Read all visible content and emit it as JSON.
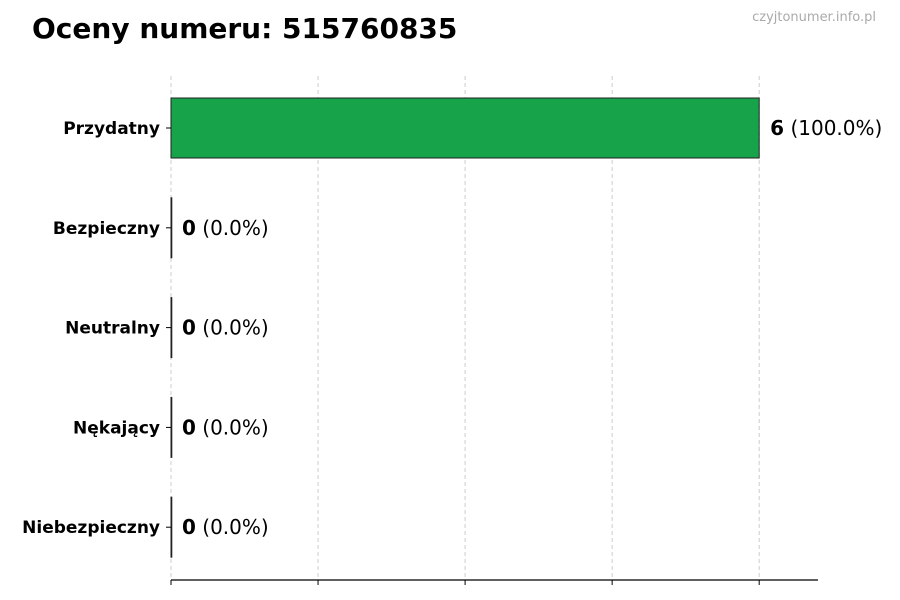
{
  "chart_data": {
    "type": "bar",
    "orientation": "horizontal",
    "title": "Oceny numeru: 515760835",
    "watermark": "czyjtonumer.info.pl",
    "categories": [
      "Przydatny",
      "Bezpieczny",
      "Neutralny",
      "Nękający",
      "Niebezpieczny"
    ],
    "values": [
      6,
      0,
      0,
      0,
      0
    ],
    "labels": [
      {
        "count": "6",
        "pct": "(100.0%)"
      },
      {
        "count": "0",
        "pct": "(0.0%)"
      },
      {
        "count": "0",
        "pct": "(0.0%)"
      },
      {
        "count": "0",
        "pct": "(0.0%)"
      },
      {
        "count": "0",
        "pct": "(0.0%)"
      }
    ],
    "xlim": [
      0,
      6.6
    ],
    "xticks": [
      0,
      1.5,
      3,
      4.5,
      6
    ],
    "xtick_labels_shown": false,
    "grid": "x, dashed",
    "bar_color": "#17a34a",
    "xlabel": "",
    "ylabel": ""
  }
}
